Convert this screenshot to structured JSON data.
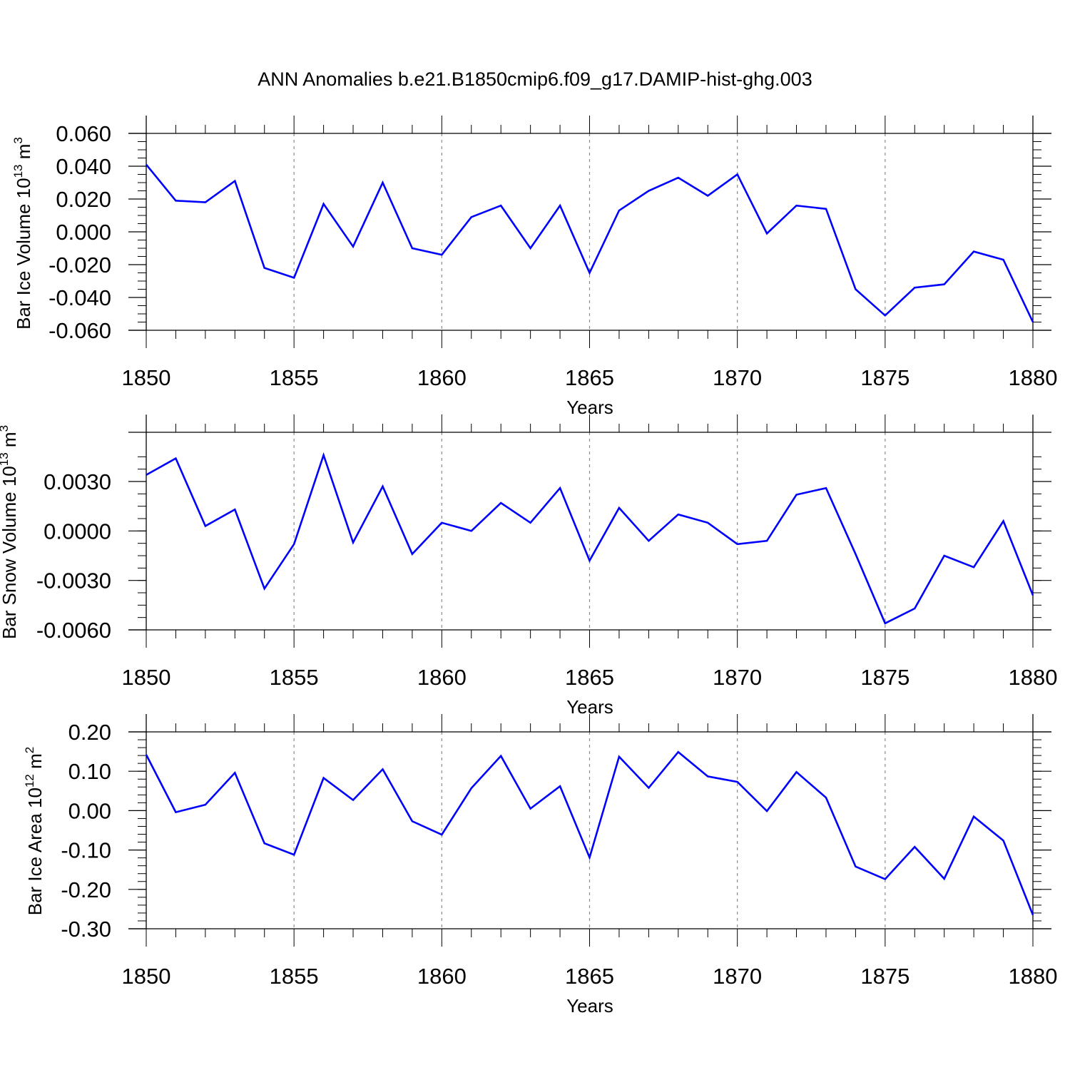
{
  "title": "ANN Anomalies b.e21.B1850cmip6.f09_g17.DAMIP-hist-ghg.003",
  "colors": {
    "line": "#0000ff",
    "axis": "#000000",
    "grid": "#8c8c8c"
  },
  "chart_data": [
    {
      "type": "line",
      "ylabel": "Bar Ice Volume 10",
      "ylabel_exp": "13",
      "ylabel_unit": "m",
      "ylabel_unit_exp": "3",
      "xlabel": "Years",
      "xlim": [
        1850,
        1880
      ],
      "ylim": [
        -0.06,
        0.06
      ],
      "x_ticks": [
        "1850",
        "1855",
        "1860",
        "1865",
        "1870",
        "1875",
        "1880"
      ],
      "y_ticks": [
        "0.060",
        "0.040",
        "0.020",
        "0.000",
        "-0.020",
        "-0.040",
        "-0.060"
      ],
      "grid": "vertical dashed at major x ticks",
      "x": [
        1850,
        1851,
        1852,
        1853,
        1854,
        1855,
        1856,
        1857,
        1858,
        1859,
        1860,
        1861,
        1862,
        1863,
        1864,
        1865,
        1866,
        1867,
        1868,
        1869,
        1870,
        1871,
        1872,
        1873,
        1874,
        1875,
        1876,
        1877,
        1878,
        1879,
        1880
      ],
      "values": [
        0.041,
        0.019,
        0.018,
        0.031,
        -0.022,
        -0.028,
        0.017,
        -0.009,
        0.03,
        -0.01,
        -0.014,
        0.009,
        0.016,
        -0.01,
        0.016,
        -0.025,
        0.013,
        0.025,
        0.033,
        0.022,
        0.035,
        -0.001,
        0.016,
        0.014,
        -0.035,
        -0.051,
        -0.034,
        -0.032,
        -0.012,
        -0.017,
        -0.055
      ]
    },
    {
      "type": "line",
      "ylabel": "Bar Snow Volume 10",
      "ylabel_exp": "13",
      "ylabel_unit": "m",
      "ylabel_unit_exp": "3",
      "xlabel": "Years",
      "xlim": [
        1850,
        1880
      ],
      "ylim": [
        -0.006,
        0.006
      ],
      "x_ticks": [
        "1850",
        "1855",
        "1860",
        "1865",
        "1870",
        "1875",
        "1880"
      ],
      "y_ticks": [
        "0.0030",
        "0.0000",
        "-0.0030",
        "-0.0060"
      ],
      "grid": "vertical dashed at major x ticks",
      "x": [
        1850,
        1851,
        1852,
        1853,
        1854,
        1855,
        1856,
        1857,
        1858,
        1859,
        1860,
        1861,
        1862,
        1863,
        1864,
        1865,
        1866,
        1867,
        1868,
        1869,
        1870,
        1871,
        1872,
        1873,
        1874,
        1875,
        1876,
        1877,
        1878,
        1879,
        1880
      ],
      "values": [
        0.0034,
        0.0044,
        0.0003,
        0.0013,
        -0.0035,
        -0.0008,
        0.0046,
        -0.0007,
        0.0027,
        -0.0014,
        0.0005,
        0.0,
        0.0017,
        0.0005,
        0.0026,
        -0.0018,
        0.0014,
        -0.0006,
        0.001,
        0.0005,
        -0.0008,
        -0.0006,
        0.0022,
        0.0026,
        -0.0014,
        -0.0056,
        -0.0047,
        -0.0015,
        -0.0022,
        0.0006,
        -0.0039
      ]
    },
    {
      "type": "line",
      "ylabel": "Bar Ice Area 10",
      "ylabel_exp": "12",
      "ylabel_unit": "m",
      "ylabel_unit_exp": "2",
      "xlabel": "Years",
      "xlim": [
        1850,
        1880
      ],
      "ylim": [
        -0.3,
        0.2
      ],
      "x_ticks": [
        "1850",
        "1855",
        "1860",
        "1865",
        "1870",
        "1875",
        "1880"
      ],
      "y_ticks": [
        "0.20",
        "0.10",
        "0.00",
        "-0.10",
        "-0.20",
        "-0.30"
      ],
      "grid": "vertical dashed at major x ticks",
      "x": [
        1850,
        1851,
        1852,
        1853,
        1854,
        1855,
        1856,
        1857,
        1858,
        1859,
        1860,
        1861,
        1862,
        1863,
        1864,
        1865,
        1866,
        1867,
        1868,
        1869,
        1870,
        1871,
        1872,
        1873,
        1874,
        1875,
        1876,
        1877,
        1878,
        1879,
        1880
      ],
      "values": [
        0.142,
        -0.004,
        0.015,
        0.096,
        -0.083,
        -0.112,
        0.083,
        0.027,
        0.105,
        -0.027,
        -0.061,
        0.057,
        0.139,
        0.005,
        0.062,
        -0.119,
        0.137,
        0.058,
        0.149,
        0.087,
        0.073,
        -0.001,
        0.098,
        0.033,
        -0.142,
        -0.174,
        -0.092,
        -0.173,
        -0.015,
        -0.076,
        -0.265
      ]
    }
  ]
}
